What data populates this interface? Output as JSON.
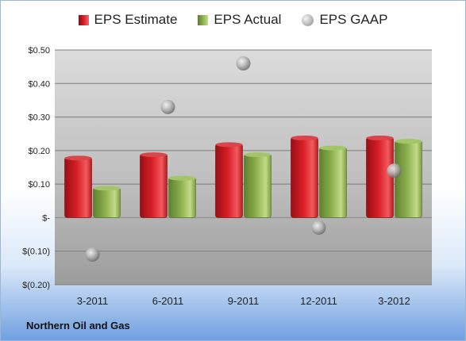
{
  "footer": {
    "company": "Northern Oil and Gas"
  },
  "colors": {
    "estimate": "#d81e26",
    "actual": "#8cb04c",
    "gaap": "#b4b4b4"
  },
  "chart_data": {
    "type": "bar",
    "categories": [
      "3-2011",
      "6-2011",
      "9-2011",
      "12-2011",
      "3-2012"
    ],
    "series": [
      {
        "name": "EPS Estimate",
        "kind": "bar",
        "values": [
          0.18,
          0.19,
          0.22,
          0.24,
          0.24
        ]
      },
      {
        "name": "EPS Actual",
        "kind": "bar",
        "values": [
          0.09,
          0.12,
          0.19,
          0.21,
          0.23
        ]
      },
      {
        "name": "EPS GAAP",
        "kind": "scatter",
        "values": [
          -0.11,
          0.33,
          0.46,
          -0.03,
          0.14
        ]
      }
    ],
    "y_ticks": [
      {
        "value": 0.5,
        "label": "$0.50"
      },
      {
        "value": 0.4,
        "label": "$0.40"
      },
      {
        "value": 0.3,
        "label": "$0.30"
      },
      {
        "value": 0.2,
        "label": "$0.20"
      },
      {
        "value": 0.1,
        "label": "$0.10"
      },
      {
        "value": 0.0,
        "label": "$-"
      },
      {
        "value": -0.1,
        "label": "$(0.10)"
      },
      {
        "value": -0.2,
        "label": "$(0.20)"
      }
    ],
    "ylim": [
      -0.2,
      0.5
    ],
    "grid": true,
    "legend": "top-center"
  }
}
